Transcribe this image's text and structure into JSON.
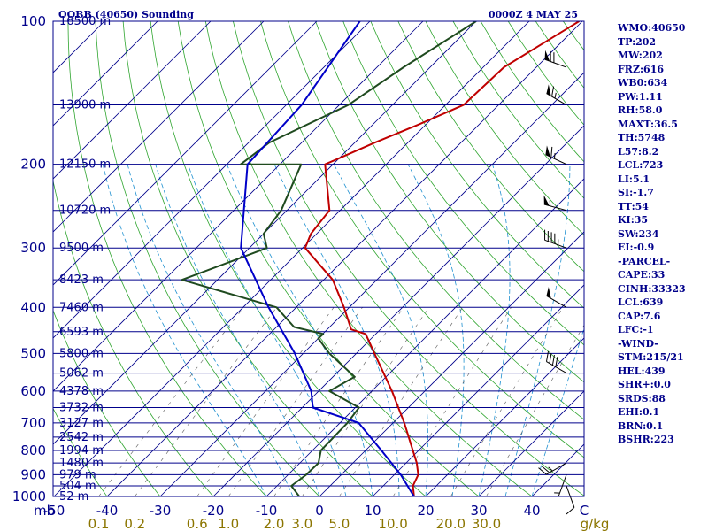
{
  "header": {
    "title": "OQBB (40650) Sounding",
    "time": "0000Z  4 MAY 25"
  },
  "colors": {
    "frame": "#00008b",
    "isobar": "#00008b",
    "isotherm": "#00008b",
    "dry_adiabat": "#2fa52f",
    "moist_adiabat": "#1e90d0",
    "mixing_ratio": "#5a5a5a",
    "temperature": "#c00000",
    "dewpoint": "#1f4a1f",
    "parcel": "#0000c8",
    "wind_barb": "#000000",
    "mixing_label": "#8b7500"
  },
  "chart_data": {
    "type": "line",
    "diagram": "skew-T log-p",
    "pressure_levels_mb": [
      100,
      200,
      300,
      400,
      500,
      600,
      700,
      800,
      900,
      1000
    ],
    "pressure_axis_label": "mb",
    "temperature_ticks": [
      "-50",
      "-40",
      "-30",
      "-20",
      "-10",
      "0",
      "10",
      "20",
      "30",
      "40",
      "C"
    ],
    "mixing_ratio_ticks": [
      "0.1",
      "0.2",
      "0.6",
      "1.0",
      "2.0",
      "3.0",
      "5.0",
      "10.0",
      "20.0",
      "30.0",
      "g/kg"
    ],
    "height_labels": [
      {
        "p": 100,
        "text": "16500 m"
      },
      {
        "p": 150,
        "text": "13900 m"
      },
      {
        "p": 200,
        "text": "12150 m"
      },
      {
        "p": 250,
        "text": "10720 m"
      },
      {
        "p": 300,
        "text": "9500 m"
      },
      {
        "p": 350,
        "text": "8423 m"
      },
      {
        "p": 400,
        "text": "7460 m"
      },
      {
        "p": 450,
        "text": "6593 m"
      },
      {
        "p": 500,
        "text": "5800 m"
      },
      {
        "p": 550,
        "text": "5062 m"
      },
      {
        "p": 600,
        "text": "4378 m"
      },
      {
        "p": 650,
        "text": "3732 m"
      },
      {
        "p": 700,
        "text": "3127 m"
      },
      {
        "p": 750,
        "text": "2542 m"
      },
      {
        "p": 800,
        "text": "1994 m"
      },
      {
        "p": 850,
        "text": "1480 m"
      },
      {
        "p": 900,
        "text": "979 m"
      },
      {
        "p": 950,
        "text": "504 m"
      },
      {
        "p": 1000,
        "text": "52 m"
      }
    ],
    "series": [
      {
        "key": "temperature",
        "points": [
          [
            100,
            -40.6
          ],
          [
            125,
            -46.1
          ],
          [
            150,
            -46.6
          ],
          [
            165,
            -51.4
          ],
          [
            180,
            -56.2
          ],
          [
            200,
            -61.5
          ],
          [
            250,
            -52.0
          ],
          [
            280,
            -51.1
          ],
          [
            300,
            -49.5
          ],
          [
            350,
            -38.3
          ],
          [
            400,
            -31.0
          ],
          [
            445,
            -25.5
          ],
          [
            455,
            -21.9
          ],
          [
            500,
            -16.6
          ],
          [
            600,
            -6.2
          ],
          [
            700,
            2.1
          ],
          [
            850,
            12.0
          ],
          [
            900,
            14.5
          ],
          [
            950,
            15.6
          ],
          [
            1000,
            17.8
          ],
          [
            1004,
            17.6
          ]
        ]
      },
      {
        "key": "dewpoint",
        "points": [
          [
            100,
            -60.0
          ],
          [
            125,
            -65.0
          ],
          [
            150,
            -68.3
          ],
          [
            180,
            -76.1
          ],
          [
            200,
            -77.4
          ],
          [
            200,
            -66.0
          ],
          [
            250,
            -61.1
          ],
          [
            280,
            -60.0
          ],
          [
            300,
            -56.7
          ],
          [
            350,
            -66.7
          ],
          [
            400,
            -43.7
          ],
          [
            440,
            -36.7
          ],
          [
            455,
            -29.9
          ],
          [
            465,
            -30.0
          ],
          [
            500,
            -25.1
          ],
          [
            560,
            -15.9
          ],
          [
            600,
            -18.0
          ],
          [
            650,
            -9.3
          ],
          [
            700,
            -8.6
          ],
          [
            800,
            -8.4
          ],
          [
            850,
            -6.5
          ],
          [
            900,
            -6.6
          ],
          [
            950,
            -7.3
          ],
          [
            1000,
            -3.8
          ],
          [
            1004,
            -3.7
          ]
        ]
      },
      {
        "key": "parcel",
        "points": [
          [
            100,
            -81.9
          ],
          [
            150,
            -77.1
          ],
          [
            200,
            -76.1
          ],
          [
            300,
            -61.6
          ],
          [
            400,
            -45.2
          ],
          [
            500,
            -31.6
          ],
          [
            600,
            -21.4
          ],
          [
            650,
            -18.0
          ],
          [
            700,
            -6.5
          ],
          [
            800,
            3.0
          ],
          [
            900,
            11.2
          ],
          [
            1000,
            17.8
          ]
        ]
      }
    ],
    "wind_barbs": [
      {
        "p": 125,
        "dir": 290,
        "speed_kt": 70
      },
      {
        "p": 150,
        "dir": 300,
        "speed_kt": 65
      },
      {
        "p": 200,
        "dir": 295,
        "speed_kt": 65
      },
      {
        "p": 250,
        "dir": 285,
        "speed_kt": 55
      },
      {
        "p": 300,
        "dir": 290,
        "speed_kt": 45
      },
      {
        "p": 400,
        "dir": 300,
        "speed_kt": 50
      },
      {
        "p": 550,
        "dir": 300,
        "speed_kt": 40
      },
      {
        "p": 850,
        "dir": 240,
        "speed_kt": 25
      },
      {
        "p": 900,
        "dir": 200,
        "speed_kt": 15
      },
      {
        "p": 950,
        "dir": 160,
        "speed_kt": 10
      }
    ]
  },
  "indices": [
    "WMO:40650",
    "TP:202",
    "MW:202",
    "FRZ:616",
    "WB0:634",
    "PW:1.11",
    "RH:58.0",
    "MAXT:36.5",
    "TH:5748",
    "L57:8.2",
    "LCL:723",
    "LI:5.1",
    "SI:-1.7",
    "TT:54",
    "KI:35",
    "SW:234",
    "EI:-0.9",
    "-PARCEL-",
    "CAPE:33",
    "CINH:33323",
    "LCL:639",
    "CAP:7.6",
    "LFC:-1",
    "-WIND-",
    "STM:215/21",
    "HEL:439",
    "SHR+:0.0",
    "SRDS:88",
    "EHI:0.1",
    "BRN:0.1",
    "BSHR:223"
  ]
}
